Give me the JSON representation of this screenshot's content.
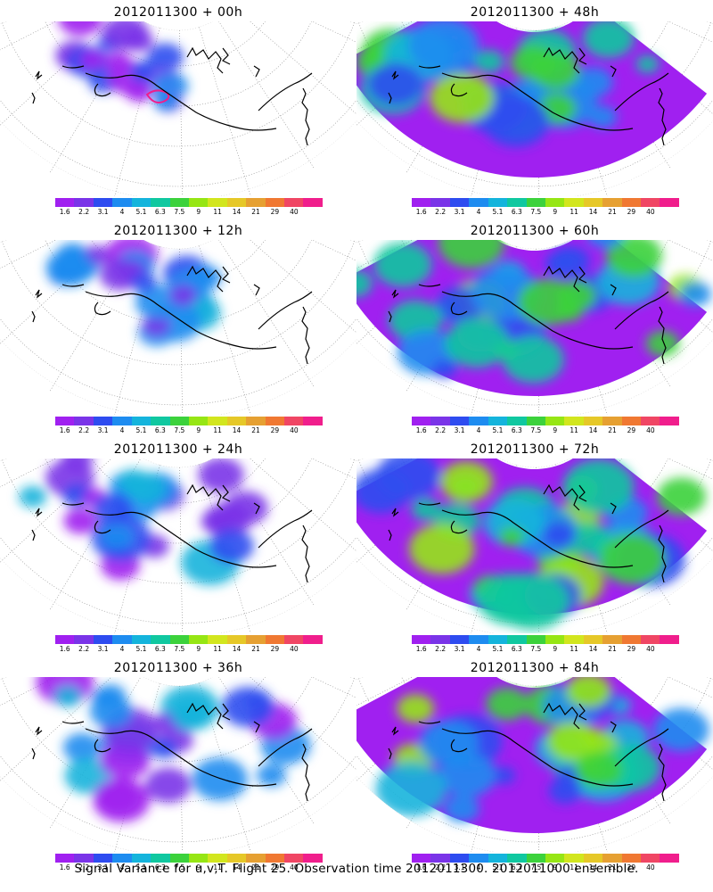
{
  "panels": [
    {
      "title": "2012011300 + 00h",
      "spread": 0.45,
      "peak": 0.55,
      "red_contour": true
    },
    {
      "title": "2012011300 + 48h",
      "spread": 0.95,
      "peak": 0.75,
      "red_contour": false
    },
    {
      "title": "2012011300 + 12h",
      "spread": 0.6,
      "peak": 0.6,
      "red_contour": false
    },
    {
      "title": "2012011300 + 60h",
      "spread": 0.98,
      "peak": 0.8,
      "red_contour": false
    },
    {
      "title": "2012011300 + 24h",
      "spread": 0.75,
      "peak": 0.65,
      "red_contour": false
    },
    {
      "title": "2012011300 + 72h",
      "spread": 1.0,
      "peak": 0.85,
      "red_contour": false
    },
    {
      "title": "2012011300 + 36h",
      "spread": 0.85,
      "peak": 0.7,
      "red_contour": false
    },
    {
      "title": "2012011300 + 84h",
      "spread": 1.0,
      "peak": 0.85,
      "red_contour": false
    }
  ],
  "colorbar": {
    "colors": [
      "#a020f0",
      "#7a34e8",
      "#2e4cf0",
      "#1e8cf0",
      "#14b4dc",
      "#10c8a0",
      "#3cd23c",
      "#96e614",
      "#d2e61e",
      "#e6c828",
      "#e6a032",
      "#f07832",
      "#f04664",
      "#f01e8c"
    ],
    "labels": [
      "1.6",
      "2.2",
      "3.1",
      "4",
      "5.1",
      "6.3",
      "7.5",
      "9",
      "11",
      "14",
      "21",
      "29",
      "40"
    ]
  },
  "footer": "Signal Variance for u,v,T. Flight 25. Observation time 2012011300. 2012011000 ensemble."
}
